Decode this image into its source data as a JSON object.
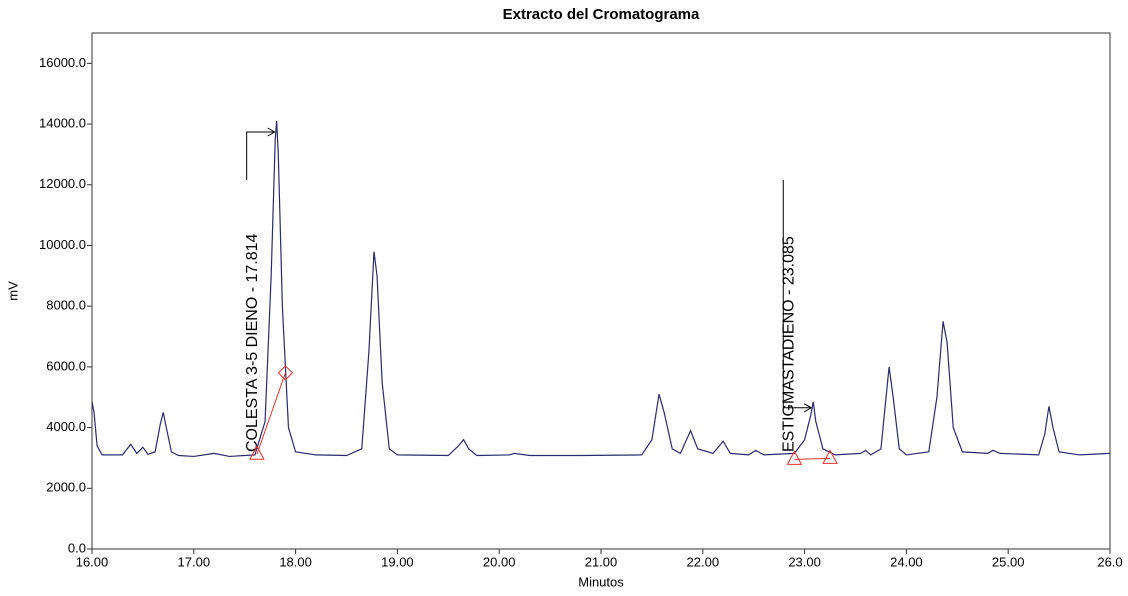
{
  "chart_data": {
    "type": "line",
    "title": "Extracto del Cromatograma",
    "xlabel": "Minutos",
    "ylabel": "mV",
    "xlim": [
      16,
      26
    ],
    "ylim": [
      0,
      17000
    ],
    "xticks": [
      {
        "value": 16,
        "label": "16.00"
      },
      {
        "value": 17,
        "label": "17.00"
      },
      {
        "value": 18,
        "label": "18.00"
      },
      {
        "value": 19,
        "label": "19.00"
      },
      {
        "value": 20,
        "label": "20.00"
      },
      {
        "value": 21,
        "label": "21.00"
      },
      {
        "value": 22,
        "label": "22.00"
      },
      {
        "value": 23,
        "label": "23.00"
      },
      {
        "value": 24,
        "label": "24.00"
      },
      {
        "value": 25,
        "label": "25.00"
      },
      {
        "value": 26,
        "label": "26.0"
      }
    ],
    "yticks": [
      {
        "value": 0,
        "label": "0.0"
      },
      {
        "value": 2000,
        "label": "2000.0"
      },
      {
        "value": 4000,
        "label": "4000.0"
      },
      {
        "value": 6000,
        "label": "6000.0"
      },
      {
        "value": 8000,
        "label": "8000.0"
      },
      {
        "value": 10000,
        "label": "10000.0"
      },
      {
        "value": 12000,
        "label": "12000.0"
      },
      {
        "value": 14000,
        "label": "14000.0"
      },
      {
        "value": 16000,
        "label": "16000.0"
      }
    ],
    "x": [
      16.0,
      16.02,
      16.05,
      16.1,
      16.3,
      16.38,
      16.44,
      16.5,
      16.55,
      16.62,
      16.67,
      16.7,
      16.73,
      16.78,
      16.85,
      17.0,
      17.2,
      17.35,
      17.6,
      17.7,
      17.76,
      17.8,
      17.814,
      17.83,
      17.87,
      17.93,
      18.0,
      18.2,
      18.5,
      18.65,
      18.72,
      18.77,
      18.8,
      18.85,
      18.92,
      19.0,
      19.5,
      19.6,
      19.65,
      19.7,
      19.78,
      20.1,
      20.15,
      20.3,
      20.8,
      21.4,
      21.5,
      21.57,
      21.62,
      21.7,
      21.78,
      21.88,
      21.95,
      22.1,
      22.2,
      22.27,
      22.45,
      22.52,
      22.6,
      22.9,
      23.0,
      23.06,
      23.085,
      23.11,
      23.18,
      23.3,
      23.55,
      23.6,
      23.65,
      23.75,
      23.8,
      23.83,
      23.87,
      23.93,
      24.0,
      24.22,
      24.3,
      24.36,
      24.4,
      24.46,
      24.55,
      24.8,
      24.85,
      24.92,
      25.3,
      25.36,
      25.4,
      25.44,
      25.5,
      25.7,
      26.0
    ],
    "series": [
      {
        "color": "#2a2a6e",
        "values": [
          4850,
          4500,
          3400,
          3100,
          3100,
          3450,
          3150,
          3350,
          3120,
          3200,
          4100,
          4500,
          4000,
          3200,
          3080,
          3050,
          3150,
          3050,
          3100,
          4200,
          9000,
          13500,
          14100,
          13000,
          8000,
          4000,
          3200,
          3100,
          3080,
          3300,
          6500,
          9800,
          9000,
          5500,
          3300,
          3100,
          3080,
          3400,
          3600,
          3300,
          3080,
          3100,
          3150,
          3080,
          3080,
          3100,
          3600,
          5100,
          4500,
          3300,
          3150,
          3900,
          3300,
          3150,
          3550,
          3150,
          3100,
          3250,
          3100,
          3150,
          3600,
          4400,
          4850,
          4200,
          3300,
          3100,
          3150,
          3250,
          3100,
          3300,
          5000,
          6000,
          5000,
          3300,
          3100,
          3200,
          5000,
          7500,
          6800,
          4000,
          3200,
          3150,
          3250,
          3150,
          3100,
          3800,
          4700,
          4000,
          3200,
          3100,
          3150
        ]
      }
    ],
    "annotations": [
      {
        "text": "COLESTA 3-5 DIENO - 17.814",
        "x": 17.814,
        "start": 17.62,
        "end": 17.9,
        "start_marker": "triangle",
        "end_marker": "diamond"
      },
      {
        "text": "ESTIGMASTADIENO - 23.085",
        "x": 23.085,
        "start": 22.9,
        "end": 23.25,
        "start_marker": "triangle",
        "end_marker": "triangle"
      }
    ],
    "marker_color": "#e8322e"
  }
}
